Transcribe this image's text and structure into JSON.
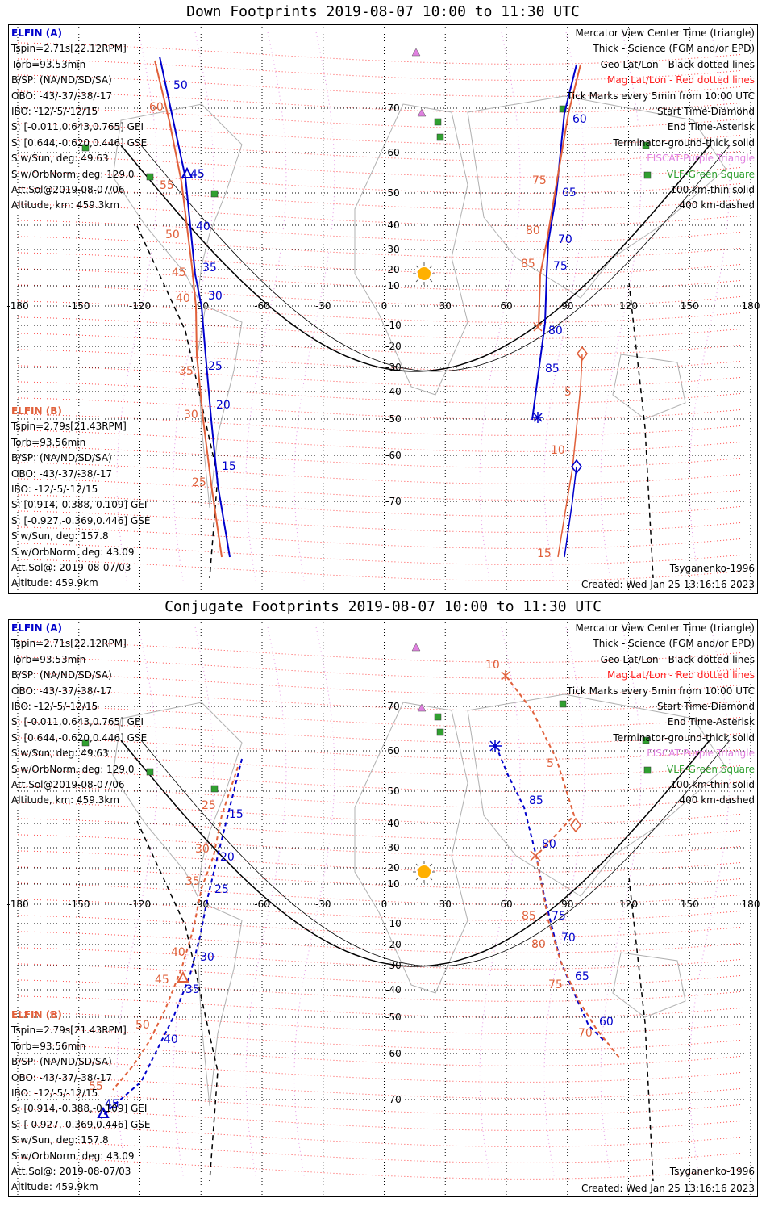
{
  "panels": [
    {
      "title": "Down Footprints 2019-08-07 10:00 to 11:30 UTC",
      "info_a": [
        "ELFIN (A)",
        "Tspin=2.71s[22.12RPM]",
        "Torb=93.53min",
        "B/SP: (NA/ND/SD/SA)",
        "OBO: -43/-37/-38/-17",
        "IBO: -12/-5/-12/15",
        "S: [-0.011,0.643,0.765] GEI",
        "S: [0.644,-0.620,0.446] GSE",
        "S w/Sun, deg: 49.63",
        "S w/OrbNorm, deg: 129.0",
        "Att.Sol@2019-08-07/06",
        "Altitude, km: 459.3km"
      ],
      "info_b": [
        "ELFIN (B)",
        "Tspin=2.79s[21.43RPM]",
        "Torb=93.56min",
        "B/SP: (NA/ND/SD/SA)",
        "OBO: -43/-37/-38/-17",
        "IBO: -12/-5/-12/15",
        "S: [0.914,-0.388,-0.109] GEI",
        "S: [-0.927,-0.369,0.446] GSE",
        "S w/Sun, deg: 157.8",
        "S w/OrbNorm, deg: 43.09",
        "Att.Sol@: 2019-08-07/03",
        "Altitude: 459.9km"
      ],
      "legend": [
        "Mercator View Center Time (triangle)",
        "Thick - Science (FGM and/or EPD)",
        "Geo Lat/Lon - Black dotted lines",
        "Mag Lat/Lon - Red dotted lines",
        "Tick Marks every 5min from 10:00 UTC",
        "Start Time-Diamond",
        "End Time-Asterisk",
        "Terminator-ground-thick solid",
        "EISCAT-Purple Triangle",
        "VLF-Green Square",
        "100 km-thin solid",
        "400 km-dashed"
      ],
      "model": "Tsyganenko-1996",
      "created": "Created: Wed Jan 25 13:16:16 2023",
      "lon_labels": [
        "-180",
        "-150",
        "-120",
        "-90",
        "-60",
        "-30",
        "0",
        "30",
        "60",
        "90",
        "120",
        "150",
        "180"
      ],
      "lat_labels": [
        "70",
        "60",
        "50",
        "40",
        "30",
        "20",
        "10",
        "-10",
        "-20",
        "-30",
        "-40",
        "-50",
        "-60",
        "-70"
      ],
      "ticks_a": [
        {
          "t": "50"
        },
        {
          "t": "45"
        },
        {
          "t": "40"
        },
        {
          "t": "35"
        },
        {
          "t": "30"
        },
        {
          "t": "25"
        },
        {
          "t": "20"
        },
        {
          "t": "15"
        },
        {
          "t": "60"
        },
        {
          "t": "65"
        },
        {
          "t": "70"
        },
        {
          "t": "75"
        },
        {
          "t": "80"
        },
        {
          "t": "85"
        }
      ],
      "ticks_b": [
        {
          "t": "60"
        },
        {
          "t": "55"
        },
        {
          "t": "50"
        },
        {
          "t": "45"
        },
        {
          "t": "40"
        },
        {
          "t": "35"
        },
        {
          "t": "30"
        },
        {
          "t": "25"
        },
        {
          "t": "75"
        },
        {
          "t": "80"
        },
        {
          "t": "85"
        },
        {
          "t": "5"
        },
        {
          "t": "10"
        },
        {
          "t": "15"
        }
      ]
    },
    {
      "title": "Conjugate Footprints 2019-08-07 10:00 to 11:30 UTC",
      "info_a": [
        "ELFIN (A)",
        "Tspin=2.71s[22.12RPM]",
        "Torb=93.53min",
        "B/SP: (NA/ND/SD/SA)",
        "OBO: -43/-37/-38/-17",
        "IBO: -12/-5/-12/15",
        "S: [-0.011,0.643,0.765] GEI",
        "S: [0.644,-0.620,0.446] GSE",
        "S w/Sun, deg: 49.63",
        "S w/OrbNorm, deg: 129.0",
        "Att.Sol@2019-08-07/06",
        "Altitude, km: 459.3km"
      ],
      "info_b": [
        "ELFIN (B)",
        "Tspin=2.79s[21.43RPM]",
        "Torb=93.56min",
        "B/SP: (NA/ND/SD/SA)",
        "OBO: -43/-37/-38/-17",
        "IBO: -12/-5/-12/15",
        "S: [0.914,-0.388,-0.109] GEI",
        "S: [-0.927,-0.369,0.446] GSE",
        "S w/Sun, deg: 157.8",
        "S w/OrbNorm, deg: 43.09",
        "Att.Sol@: 2019-08-07/03",
        "Altitude: 459.9km"
      ],
      "legend": [
        "Mercator View Center Time (triangle)",
        "Thick - Science (FGM and/or EPD)",
        "Geo Lat/Lon - Black dotted lines",
        "Mag Lat/Lon - Red dotted lines",
        "Tick Marks every 5min from 10:00 UTC",
        "Start Time-Diamond",
        "End Time-Asterisk",
        "Terminator-ground-thick solid",
        "EISCAT-Purple Triangle",
        "VLF-Green Square",
        "100 km-thin solid",
        "400 km-dashed"
      ],
      "model": "Tsyganenko-1996",
      "created": "Created: Wed Jan 25 13:16:16 2023",
      "lon_labels": [
        "-180",
        "-150",
        "-120",
        "-90",
        "-60",
        "-30",
        "0",
        "30",
        "60",
        "90",
        "120",
        "150",
        "180"
      ],
      "lat_labels": [
        "70",
        "60",
        "50",
        "40",
        "30",
        "20",
        "10",
        "-10",
        "-20",
        "-30",
        "-40",
        "-50",
        "-60",
        "-70"
      ],
      "ticks_a": [
        {
          "t": "15"
        },
        {
          "t": "20"
        },
        {
          "t": "25"
        },
        {
          "t": "30"
        },
        {
          "t": "35"
        },
        {
          "t": "40"
        },
        {
          "t": "45"
        },
        {
          "t": "85"
        },
        {
          "t": "80"
        },
        {
          "t": "75"
        },
        {
          "t": "70"
        },
        {
          "t": "65"
        },
        {
          "t": "60"
        }
      ],
      "ticks_b": [
        {
          "t": "25"
        },
        {
          "t": "30"
        },
        {
          "t": "35"
        },
        {
          "t": "40"
        },
        {
          "t": "45"
        },
        {
          "t": "50"
        },
        {
          "t": "55"
        },
        {
          "t": "10"
        },
        {
          "t": "5"
        },
        {
          "t": "85"
        },
        {
          "t": "80"
        },
        {
          "t": "75"
        },
        {
          "t": "70"
        }
      ]
    }
  ],
  "colors": {
    "elfin_a": "#0000cc",
    "elfin_b": "#e0603a",
    "mag_grid": "#ff2020",
    "geo_grid": "#000000",
    "eiscat": "#e080e0",
    "vlf": "#30a030",
    "sun": "#ffb000",
    "coast": "#b0b0b0"
  }
}
